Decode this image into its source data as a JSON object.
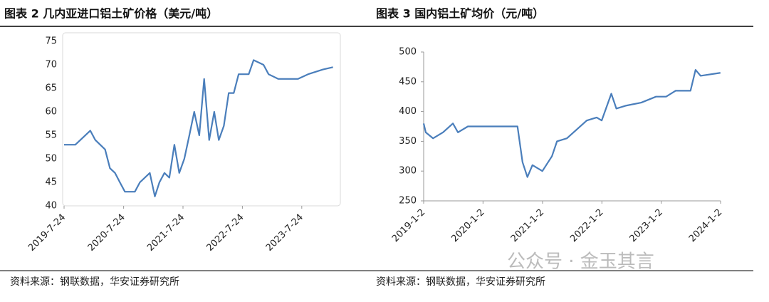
{
  "chart_data": [
    {
      "type": "line",
      "title": "图表 2 几内亚进口铝土矿价格（美元/吨）",
      "source": "资料来源：钢联数据，华安证券研究所",
      "x": [
        "2019-7-24",
        "2019-10-1",
        "2019-11-1",
        "2020-1-1",
        "2020-2-1",
        "2020-4-1",
        "2020-5-1",
        "2020-6-1",
        "2020-7-1",
        "2020-8-1",
        "2020-10-1",
        "2020-11-1",
        "2021-1-1",
        "2021-2-1",
        "2021-3-1",
        "2021-4-1",
        "2021-5-1",
        "2021-6-1",
        "2021-7-1",
        "2021-8-1",
        "2021-9-1",
        "2021-10-1",
        "2021-11-1",
        "2021-12-1",
        "2022-1-1",
        "2022-2-1",
        "2022-3-1",
        "2022-4-1",
        "2022-5-1",
        "2022-6-1",
        "2022-7-1",
        "2022-9-1",
        "2022-10-1",
        "2022-12-1",
        "2023-1-1",
        "2023-3-1",
        "2023-7-1",
        "2023-9-1",
        "2023-12-1",
        "2024-2-1"
      ],
      "series": [
        {
          "name": "几内亚进口铝土矿价格",
          "color": "#4a7ebb",
          "values": [
            53,
            53,
            54,
            56,
            54,
            52,
            48,
            47,
            45,
            43,
            43,
            45,
            47,
            42,
            45,
            47,
            46,
            53,
            47,
            50,
            55,
            60,
            55,
            67,
            54,
            60,
            54,
            57,
            64,
            64,
            68,
            68,
            71,
            70,
            68,
            67,
            67,
            68,
            69,
            69.5
          ]
        }
      ],
      "xlim": [
        "2019-7-24",
        "2024-2-20"
      ],
      "xticks": [
        "2019-7-24",
        "2020-7-24",
        "2021-7-24",
        "2022-7-24",
        "2023-7-24"
      ],
      "ylim": [
        40,
        75
      ],
      "yticks": [
        40,
        45,
        50,
        55,
        60,
        65,
        70,
        75
      ]
    },
    {
      "type": "line",
      "title": "图表 3 国内铝土矿均价（元/吨）",
      "source": "资料来源：钢联数据，华安证券研究所",
      "x": [
        "2019-1-2",
        "2019-1-15",
        "2019-3-1",
        "2019-5-1",
        "2019-7-1",
        "2019-8-1",
        "2019-10-1",
        "2020-1-1",
        "2020-8-1",
        "2020-9-1",
        "2020-10-1",
        "2020-11-1",
        "2021-1-1",
        "2021-3-1",
        "2021-4-1",
        "2021-6-1",
        "2021-8-1",
        "2021-10-1",
        "2021-12-1",
        "2022-1-1",
        "2022-3-1",
        "2022-4-1",
        "2022-6-1",
        "2022-9-1",
        "2022-12-1",
        "2023-2-1",
        "2023-4-1",
        "2023-7-1",
        "2023-8-1",
        "2023-9-1",
        "2024-1-1"
      ],
      "series": [
        {
          "name": "国内铝土矿均价",
          "color": "#4a7ebb",
          "values": [
            380,
            365,
            355,
            365,
            380,
            365,
            375,
            375,
            375,
            315,
            290,
            310,
            300,
            325,
            350,
            355,
            370,
            385,
            390,
            385,
            430,
            405,
            410,
            415,
            425,
            425,
            435,
            435,
            470,
            460,
            465
          ]
        }
      ],
      "xlim": [
        "2019-1-2",
        "2024-1-2"
      ],
      "xticks": [
        "2019-1-2",
        "2020-1-2",
        "2021-1-2",
        "2022-1-2",
        "2023-1-2",
        "2024-1-2"
      ],
      "ylim": [
        250,
        500
      ],
      "yticks": [
        250,
        300,
        350,
        400,
        450,
        500
      ]
    }
  ],
  "watermark": "公众号 · 金玉其言"
}
